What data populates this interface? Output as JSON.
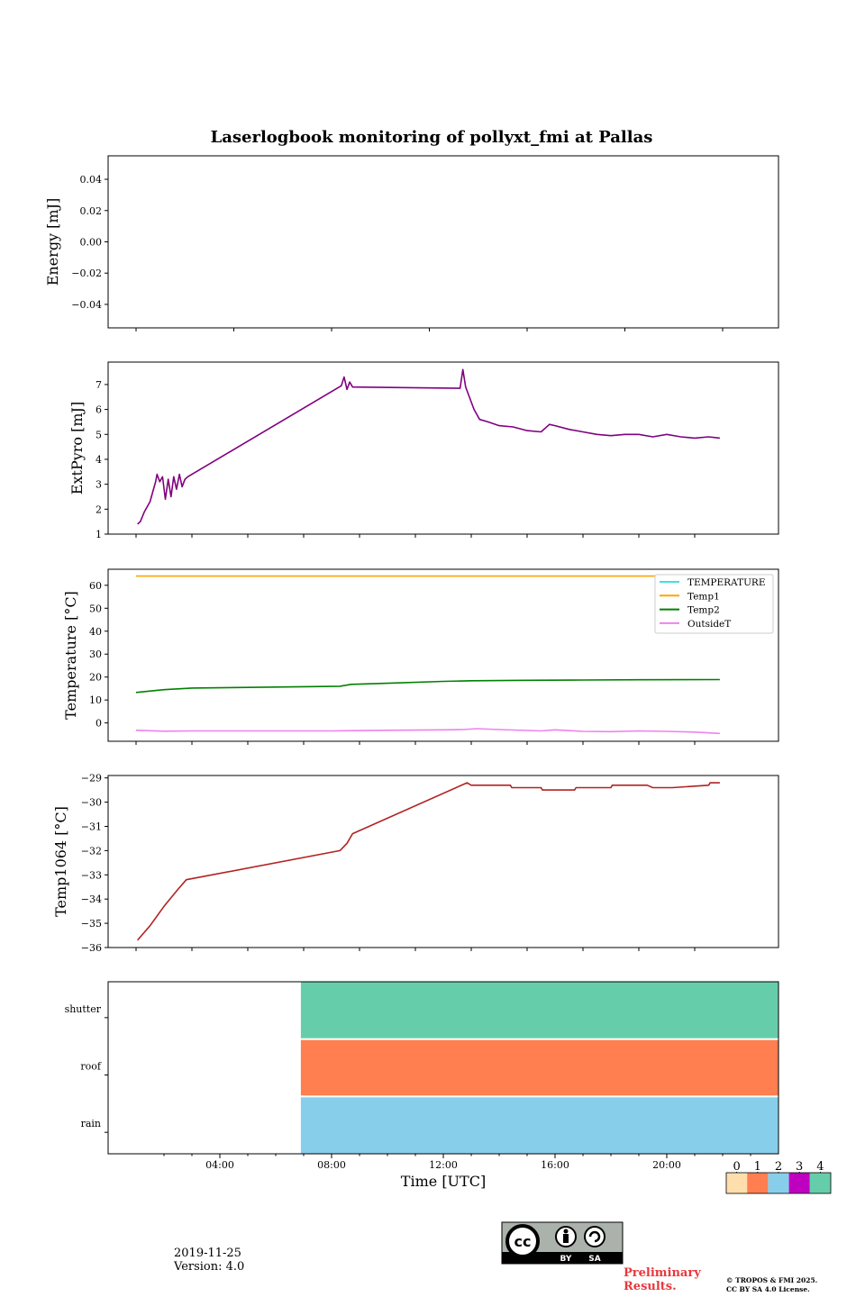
{
  "title": "Laserlogbook monitoring of pollyxt_fmi at Pallas",
  "footer": {
    "date": "2019-11-25",
    "version": "Version: 4.0",
    "preliminary": [
      "Preliminary",
      "Results."
    ],
    "copyright": [
      "© TROPOS & FMI 2025.",
      "CC BY SA 4.0 License."
    ],
    "license_badge": {
      "cc": "cc",
      "by": "BY",
      "sa": "SA"
    }
  },
  "colors": {
    "extpyro": "#800080",
    "temperature": "#40e0e0",
    "temp1": "#ffa500",
    "temp2": "#008000",
    "outsideT": "#ee82ee",
    "temp1064": "#b22222",
    "status0": "#ffdead",
    "status1": "#ff7f50",
    "status2": "#87ceeb",
    "status3": "#c000c0",
    "status4": "#66cdaa"
  },
  "chart_data": [
    {
      "type": "line",
      "id": "energy",
      "ylabel": "Energy [mJ]",
      "ylim": [
        -0.055,
        0.055
      ],
      "yticks": [
        {
          "v": 0.04,
          "label": "0.04"
        },
        {
          "v": 0.02,
          "label": "0.02"
        },
        {
          "v": 0.0,
          "label": "0.00"
        },
        {
          "v": -0.02,
          "label": "−0.02"
        },
        {
          "v": -0.04,
          "label": "−0.04"
        }
      ],
      "series": []
    },
    {
      "type": "line",
      "id": "extpyro",
      "ylabel": "ExtPyro [mJ]",
      "ylim": [
        1,
        7.9
      ],
      "yticks": [
        {
          "v": 1,
          "label": "1"
        },
        {
          "v": 2,
          "label": "2"
        },
        {
          "v": 3,
          "label": "3"
        },
        {
          "v": 4,
          "label": "4"
        },
        {
          "v": 5,
          "label": "5"
        },
        {
          "v": 6,
          "label": "6"
        },
        {
          "v": 7,
          "label": "7"
        }
      ],
      "series": [
        {
          "name": "ExtPyro",
          "color": "#800080",
          "x": [
            1.05,
            1.15,
            1.3,
            1.5,
            1.7,
            1.75,
            1.85,
            1.95,
            2.05,
            2.15,
            2.25,
            2.35,
            2.45,
            2.55,
            2.65,
            2.75,
            2.85,
            8.35,
            8.45,
            8.55,
            8.65,
            8.75,
            12.6,
            12.7,
            12.8,
            12.9,
            13.1,
            13.3,
            13.6,
            14.0,
            14.5,
            15.0,
            15.5,
            15.8,
            16.0,
            16.5,
            17.0,
            17.5,
            18.0,
            18.5,
            19.0,
            19.5,
            20.0,
            20.5,
            21.0,
            21.5,
            21.9
          ],
          "y": [
            1.4,
            1.5,
            1.9,
            2.3,
            3.1,
            3.4,
            3.1,
            3.3,
            2.4,
            3.2,
            2.5,
            3.3,
            2.8,
            3.4,
            2.9,
            3.2,
            3.3,
            6.95,
            7.3,
            6.8,
            7.1,
            6.9,
            6.85,
            7.6,
            6.9,
            6.6,
            6.0,
            5.6,
            5.5,
            5.35,
            5.3,
            5.15,
            5.1,
            5.4,
            5.35,
            5.2,
            5.1,
            5.0,
            4.95,
            5.0,
            5.0,
            4.9,
            5.0,
            4.9,
            4.85,
            4.9,
            4.85
          ]
        }
      ]
    },
    {
      "type": "line",
      "id": "temperature",
      "ylabel": "Temperature [°C]",
      "ylim": [
        -8,
        67
      ],
      "yticks": [
        {
          "v": 0,
          "label": "0"
        },
        {
          "v": 10,
          "label": "10"
        },
        {
          "v": 20,
          "label": "20"
        },
        {
          "v": 30,
          "label": "30"
        },
        {
          "v": 40,
          "label": "40"
        },
        {
          "v": 50,
          "label": "50"
        },
        {
          "v": 60,
          "label": "60"
        }
      ],
      "legend": {
        "placement": "top-right",
        "entries": [
          "TEMPERATURE",
          "Temp1",
          "Temp2",
          "OutsideT"
        ]
      },
      "series": [
        {
          "name": "Temp1",
          "color": "#ffa500",
          "x": [
            1.0,
            21.9
          ],
          "y": [
            64,
            64
          ]
        },
        {
          "name": "Temp2",
          "color": "#008000",
          "x": [
            1.0,
            2.0,
            3.0,
            5.0,
            7.0,
            8.3,
            8.7,
            10.0,
            12.0,
            13.0,
            15.0,
            17.0,
            19.0,
            21.9
          ],
          "y": [
            13.3,
            14.5,
            15.2,
            15.5,
            15.8,
            16.0,
            16.8,
            17.3,
            18.1,
            18.4,
            18.6,
            18.7,
            18.8,
            18.9
          ]
        },
        {
          "name": "OutsideT",
          "color": "#ee82ee",
          "x": [
            1.0,
            2.0,
            3.0,
            6.0,
            8.0,
            10.0,
            12.0,
            12.7,
            13.2,
            14.0,
            15.0,
            15.5,
            16.0,
            17.0,
            18.0,
            19.0,
            20.0,
            21.0,
            21.9
          ],
          "y": [
            -3.2,
            -3.6,
            -3.5,
            -3.5,
            -3.5,
            -3.2,
            -3.0,
            -2.9,
            -2.5,
            -2.9,
            -3.3,
            -3.5,
            -3.0,
            -3.7,
            -3.8,
            -3.5,
            -3.7,
            -4.0,
            -4.6
          ]
        }
      ]
    },
    {
      "type": "line",
      "id": "temp1064",
      "ylabel": "Temp1064 [°C]",
      "ylim": [
        -36,
        -28.9
      ],
      "yticks": [
        {
          "v": -29,
          "label": "−29"
        },
        {
          "v": -30,
          "label": "−30"
        },
        {
          "v": -31,
          "label": "−31"
        },
        {
          "v": -32,
          "label": "−32"
        },
        {
          "v": -33,
          "label": "−33"
        },
        {
          "v": -34,
          "label": "−34"
        },
        {
          "v": -35,
          "label": "−35"
        },
        {
          "v": -36,
          "label": "−36"
        }
      ],
      "series": [
        {
          "name": "Temp1064",
          "color": "#b22222",
          "x": [
            1.05,
            1.5,
            2.0,
            2.5,
            2.8,
            8.3,
            8.55,
            8.75,
            12.85,
            13.0,
            14.4,
            14.45,
            15.5,
            15.55,
            16.7,
            16.75,
            18.0,
            18.05,
            19.3,
            19.5,
            20.2,
            21.5,
            21.55,
            21.9
          ],
          "y": [
            -35.7,
            -35.1,
            -34.3,
            -33.6,
            -33.2,
            -32.0,
            -31.7,
            -31.3,
            -29.2,
            -29.3,
            -29.3,
            -29.4,
            -29.4,
            -29.5,
            -29.5,
            -29.4,
            -29.4,
            -29.3,
            -29.3,
            -29.4,
            -29.4,
            -29.3,
            -29.2,
            -29.2
          ]
        }
      ]
    },
    {
      "type": "heatmap",
      "id": "status",
      "xlabel": "Time [UTC]",
      "rows": [
        "shutter",
        "roof",
        "rain"
      ],
      "xlim": [
        0,
        24
      ],
      "xticks": [
        {
          "v": 4,
          "label": "04:00"
        },
        {
          "v": 8,
          "label": "08:00"
        },
        {
          "v": 12,
          "label": "12:00"
        },
        {
          "v": 16,
          "label": "16:00"
        },
        {
          "v": 20,
          "label": "20:00"
        }
      ],
      "segments": [
        {
          "row": "shutter",
          "from": 6.9,
          "to": 24,
          "status": 4
        },
        {
          "row": "roof",
          "from": 6.9,
          "to": 24,
          "status": 1
        },
        {
          "row": "rain",
          "from": 6.9,
          "to": 24,
          "status": 2
        }
      ],
      "colorbar": {
        "labels": [
          "0",
          "1",
          "2",
          "3",
          "4"
        ]
      }
    }
  ]
}
